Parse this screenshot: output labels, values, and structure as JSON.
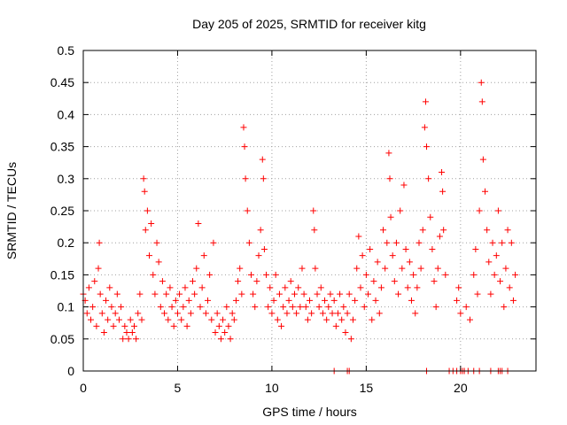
{
  "chart_data": {
    "type": "scatter",
    "title": "Day 205 of 2025, SRMTID for receiver kitg",
    "xlabel": "GPS time / hours",
    "ylabel": "SRMTID / TECUs",
    "xlim": [
      0,
      24
    ],
    "ylim": [
      0,
      0.5
    ],
    "x_ticks": [
      0,
      5,
      10,
      15,
      20
    ],
    "x_tick_labels": [
      "0",
      "5",
      "10",
      "15",
      "20"
    ],
    "y_ticks": [
      0,
      0.05,
      0.1,
      0.15,
      0.2,
      0.25,
      0.3,
      0.35,
      0.4,
      0.45,
      0.5
    ],
    "y_tick_labels": [
      "0",
      "0.05",
      "0.1",
      "0.15",
      "0.2",
      "0.25",
      "0.3",
      "0.35",
      "0.4",
      "0.45",
      "0.5"
    ],
    "grid": true,
    "marker": "+",
    "color": "#ff0000",
    "series": [
      {
        "name": "SRMTID",
        "points": [
          [
            0.0,
            0.12
          ],
          [
            0.1,
            0.11
          ],
          [
            0.2,
            0.09
          ],
          [
            0.3,
            0.13
          ],
          [
            0.4,
            0.08
          ],
          [
            0.5,
            0.1
          ],
          [
            0.6,
            0.14
          ],
          [
            0.7,
            0.07
          ],
          [
            0.8,
            0.16
          ],
          [
            0.85,
            0.2
          ],
          [
            0.9,
            0.12
          ],
          [
            1.0,
            0.09
          ],
          [
            1.1,
            0.06
          ],
          [
            1.2,
            0.11
          ],
          [
            1.3,
            0.08
          ],
          [
            1.4,
            0.13
          ],
          [
            1.5,
            0.1
          ],
          [
            1.6,
            0.07
          ],
          [
            1.7,
            0.09
          ],
          [
            1.8,
            0.12
          ],
          [
            1.9,
            0.08
          ],
          [
            2.0,
            0.1
          ],
          [
            2.1,
            0.05
          ],
          [
            2.2,
            0.07
          ],
          [
            2.3,
            0.06
          ],
          [
            2.4,
            0.05
          ],
          [
            2.5,
            0.08
          ],
          [
            2.6,
            0.06
          ],
          [
            2.7,
            0.07
          ],
          [
            2.8,
            0.05
          ],
          [
            2.9,
            0.09
          ],
          [
            3.0,
            0.12
          ],
          [
            3.1,
            0.08
          ],
          [
            3.2,
            0.3
          ],
          [
            3.25,
            0.28
          ],
          [
            3.3,
            0.22
          ],
          [
            3.4,
            0.25
          ],
          [
            3.5,
            0.18
          ],
          [
            3.6,
            0.23
          ],
          [
            3.7,
            0.15
          ],
          [
            3.8,
            0.12
          ],
          [
            3.9,
            0.2
          ],
          [
            4.0,
            0.17
          ],
          [
            4.1,
            0.1
          ],
          [
            4.2,
            0.14
          ],
          [
            4.3,
            0.09
          ],
          [
            4.4,
            0.12
          ],
          [
            4.5,
            0.08
          ],
          [
            4.6,
            0.13
          ],
          [
            4.7,
            0.1
          ],
          [
            4.8,
            0.07
          ],
          [
            4.9,
            0.11
          ],
          [
            5.0,
            0.09
          ],
          [
            5.1,
            0.12
          ],
          [
            5.2,
            0.08
          ],
          [
            5.3,
            0.1
          ],
          [
            5.4,
            0.13
          ],
          [
            5.5,
            0.07
          ],
          [
            5.6,
            0.11
          ],
          [
            5.7,
            0.09
          ],
          [
            5.8,
            0.14
          ],
          [
            5.9,
            0.12
          ],
          [
            6.0,
            0.16
          ],
          [
            6.1,
            0.23
          ],
          [
            6.2,
            0.1
          ],
          [
            6.3,
            0.13
          ],
          [
            6.4,
            0.18
          ],
          [
            6.5,
            0.09
          ],
          [
            6.6,
            0.11
          ],
          [
            6.7,
            0.15
          ],
          [
            6.8,
            0.08
          ],
          [
            6.9,
            0.2
          ],
          [
            7.0,
            0.06
          ],
          [
            7.1,
            0.09
          ],
          [
            7.2,
            0.07
          ],
          [
            7.3,
            0.05
          ],
          [
            7.4,
            0.08
          ],
          [
            7.5,
            0.06
          ],
          [
            7.6,
            0.1
          ],
          [
            7.7,
            0.07
          ],
          [
            7.8,
            0.05
          ],
          [
            7.9,
            0.09
          ],
          [
            8.0,
            0.08
          ],
          [
            8.1,
            0.11
          ],
          [
            8.2,
            0.14
          ],
          [
            8.3,
            0.16
          ],
          [
            8.4,
            0.12
          ],
          [
            8.5,
            0.38
          ],
          [
            8.55,
            0.35
          ],
          [
            8.6,
            0.3
          ],
          [
            8.7,
            0.25
          ],
          [
            8.8,
            0.2
          ],
          [
            8.9,
            0.15
          ],
          [
            9.0,
            0.12
          ],
          [
            9.1,
            0.1
          ],
          [
            9.2,
            0.14
          ],
          [
            9.3,
            0.18
          ],
          [
            9.4,
            0.22
          ],
          [
            9.5,
            0.33
          ],
          [
            9.55,
            0.3
          ],
          [
            9.6,
            0.19
          ],
          [
            9.7,
            0.15
          ],
          [
            9.8,
            0.1
          ],
          [
            9.9,
            0.13
          ],
          [
            10.0,
            0.09
          ],
          [
            10.1,
            0.11
          ],
          [
            10.2,
            0.15
          ],
          [
            10.3,
            0.08
          ],
          [
            10.4,
            0.12
          ],
          [
            10.5,
            0.07
          ],
          [
            10.6,
            0.1
          ],
          [
            10.7,
            0.13
          ],
          [
            10.8,
            0.09
          ],
          [
            10.9,
            0.11
          ],
          [
            11.0,
            0.14
          ],
          [
            11.1,
            0.1
          ],
          [
            11.2,
            0.12
          ],
          [
            11.3,
            0.09
          ],
          [
            11.4,
            0.13
          ],
          [
            11.5,
            0.1
          ],
          [
            11.6,
            0.16
          ],
          [
            11.7,
            0.12
          ],
          [
            11.8,
            0.1
          ],
          [
            11.9,
            0.08
          ],
          [
            12.0,
            0.11
          ],
          [
            12.1,
            0.09
          ],
          [
            12.2,
            0.25
          ],
          [
            12.25,
            0.22
          ],
          [
            12.3,
            0.16
          ],
          [
            12.4,
            0.12
          ],
          [
            12.5,
            0.1
          ],
          [
            12.6,
            0.13
          ],
          [
            12.7,
            0.09
          ],
          [
            12.8,
            0.11
          ],
          [
            12.9,
            0.08
          ],
          [
            13.0,
            0.1
          ],
          [
            13.1,
            0.12
          ],
          [
            13.2,
            0.09
          ],
          [
            13.3,
            0.11
          ],
          [
            13.4,
            0.07
          ],
          [
            13.5,
            0.09
          ],
          [
            13.6,
            0.12
          ],
          [
            13.7,
            0.08
          ],
          [
            13.8,
            0.1
          ],
          [
            13.9,
            0.06
          ],
          [
            14.0,
            0.09
          ],
          [
            14.1,
            0.12
          ],
          [
            14.2,
            0.05
          ],
          [
            14.3,
            0.08
          ],
          [
            14.4,
            0.11
          ],
          [
            14.5,
            0.16
          ],
          [
            14.6,
            0.21
          ],
          [
            14.7,
            0.13
          ],
          [
            14.8,
            0.18
          ],
          [
            14.9,
            0.1
          ],
          [
            15.0,
            0.15
          ],
          [
            15.1,
            0.12
          ],
          [
            15.2,
            0.19
          ],
          [
            15.3,
            0.08
          ],
          [
            15.4,
            0.14
          ],
          [
            15.5,
            0.11
          ],
          [
            15.6,
            0.17
          ],
          [
            15.7,
            0.09
          ],
          [
            15.8,
            0.13
          ],
          [
            15.9,
            0.22
          ],
          [
            16.0,
            0.16
          ],
          [
            16.1,
            0.2
          ],
          [
            16.2,
            0.34
          ],
          [
            16.25,
            0.3
          ],
          [
            16.3,
            0.24
          ],
          [
            16.4,
            0.18
          ],
          [
            16.5,
            0.14
          ],
          [
            16.6,
            0.2
          ],
          [
            16.7,
            0.12
          ],
          [
            16.8,
            0.25
          ],
          [
            16.9,
            0.16
          ],
          [
            17.0,
            0.29
          ],
          [
            17.1,
            0.19
          ],
          [
            17.2,
            0.13
          ],
          [
            17.3,
            0.17
          ],
          [
            17.4,
            0.11
          ],
          [
            17.5,
            0.15
          ],
          [
            17.6,
            0.09
          ],
          [
            17.7,
            0.13
          ],
          [
            17.8,
            0.2
          ],
          [
            17.9,
            0.16
          ],
          [
            18.0,
            0.22
          ],
          [
            18.1,
            0.38
          ],
          [
            18.15,
            0.42
          ],
          [
            18.2,
            0.35
          ],
          [
            18.3,
            0.3
          ],
          [
            18.4,
            0.24
          ],
          [
            18.5,
            0.19
          ],
          [
            18.6,
            0.14
          ],
          [
            18.7,
            0.1
          ],
          [
            18.8,
            0.16
          ],
          [
            18.9,
            0.21
          ],
          [
            19.0,
            0.31
          ],
          [
            19.05,
            0.28
          ],
          [
            19.1,
            0.22
          ],
          [
            19.2,
            0.15
          ],
          [
            19.8,
            0.11
          ],
          [
            19.9,
            0.13
          ],
          [
            20.0,
            0.09
          ],
          [
            20.3,
            0.1
          ],
          [
            20.5,
            0.08
          ],
          [
            20.7,
            0.15
          ],
          [
            20.8,
            0.19
          ],
          [
            20.9,
            0.12
          ],
          [
            21.0,
            0.25
          ],
          [
            21.1,
            0.45
          ],
          [
            21.15,
            0.42
          ],
          [
            21.2,
            0.33
          ],
          [
            21.3,
            0.28
          ],
          [
            21.4,
            0.22
          ],
          [
            21.5,
            0.17
          ],
          [
            21.6,
            0.12
          ],
          [
            21.7,
            0.2
          ],
          [
            21.8,
            0.15
          ],
          [
            21.9,
            0.18
          ],
          [
            22.0,
            0.25
          ],
          [
            22.1,
            0.14
          ],
          [
            22.2,
            0.2
          ],
          [
            22.3,
            0.1
          ],
          [
            22.4,
            0.16
          ],
          [
            22.5,
            0.22
          ],
          [
            22.6,
            0.13
          ],
          [
            22.7,
            0.2
          ],
          [
            22.8,
            0.11
          ],
          [
            22.9,
            0.15
          ],
          [
            13.3,
            0.0
          ],
          [
            14.0,
            0.0
          ],
          [
            14.1,
            0.0
          ],
          [
            18.2,
            0.0
          ],
          [
            19.4,
            0.0
          ],
          [
            19.6,
            0.0
          ],
          [
            19.8,
            0.0
          ],
          [
            20.0,
            0.0
          ],
          [
            20.1,
            0.0
          ],
          [
            20.2,
            0.0
          ],
          [
            20.4,
            0.0
          ],
          [
            20.7,
            0.0
          ],
          [
            21.0,
            0.0
          ],
          [
            21.6,
            0.0
          ],
          [
            22.0,
            0.0
          ],
          [
            22.1,
            0.0
          ],
          [
            22.2,
            0.0
          ],
          [
            22.5,
            0.0
          ]
        ]
      }
    ]
  }
}
